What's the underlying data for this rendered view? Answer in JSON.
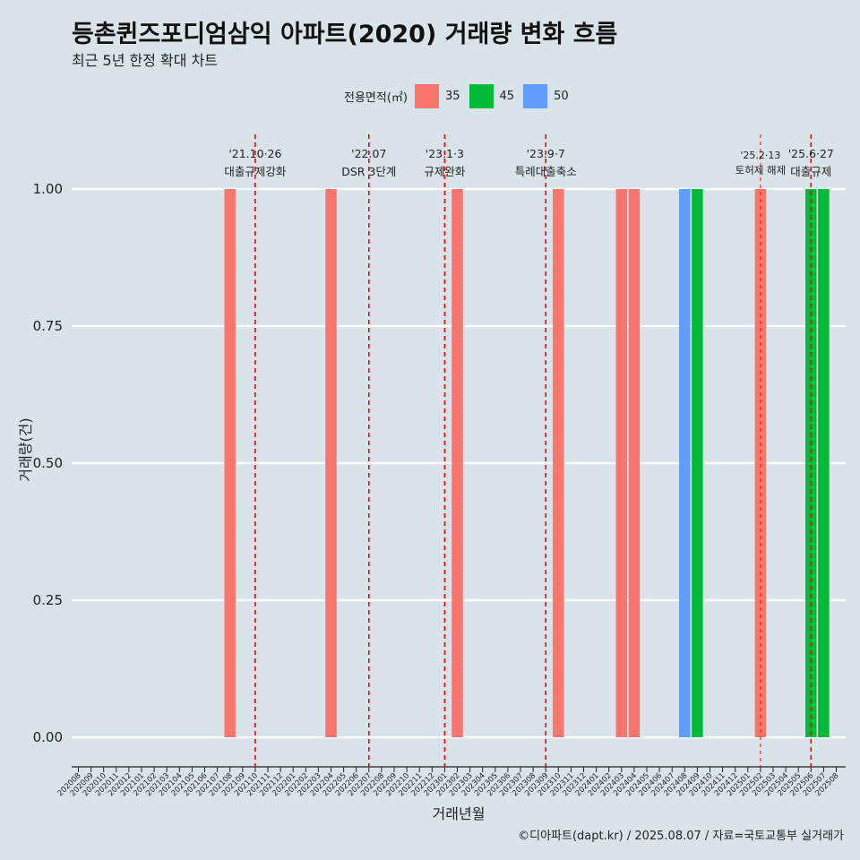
{
  "title": "등촌퀸즈포디엄삼익 아파트(2020) 거래량 변화 흐름",
  "subtitle": "최근 5년 한정 확대 차트",
  "footer": "©디아파트(dapt.kr) / 2025.08.07 / 자료=국토교통부 실거래가",
  "legend": {
    "title": "전용면적(㎡)",
    "items": [
      {
        "label": "35",
        "color": "#F8766D"
      },
      {
        "label": "45",
        "color": "#00BA38"
      },
      {
        "label": "50",
        "color": "#619CFF"
      }
    ]
  },
  "chart_data": {
    "type": "bar",
    "xlabel": "거래년월",
    "ylabel": "거래량(건)",
    "ylim": [
      0,
      1
    ],
    "yticks": [
      "0.00",
      "0.25",
      "0.50",
      "0.75",
      "1.00"
    ],
    "grid": true,
    "legend_position": "top",
    "categories": [
      "202008",
      "202009",
      "202010",
      "202011",
      "202012",
      "202101",
      "202102",
      "202103",
      "202104",
      "202105",
      "202106",
      "202107",
      "202108",
      "202109",
      "202110",
      "202111",
      "202112",
      "202201",
      "202202",
      "202203",
      "202204",
      "202205",
      "202206",
      "202207",
      "202208",
      "202209",
      "202210",
      "202211",
      "202212",
      "202301",
      "202302",
      "202303",
      "202304",
      "202305",
      "202306",
      "202307",
      "202308",
      "202309",
      "202310",
      "202311",
      "202312",
      "202401",
      "202402",
      "202403",
      "202404",
      "202405",
      "202406",
      "202407",
      "202408",
      "202409",
      "202410",
      "202411",
      "202412",
      "202501",
      "202502",
      "202503",
      "202504",
      "202505",
      "202506",
      "202507",
      "202508"
    ],
    "series": [
      {
        "name": "35",
        "color": "#F8766D",
        "points": [
          {
            "month": "202108",
            "value": 1
          },
          {
            "month": "202204",
            "value": 1
          },
          {
            "month": "202302",
            "value": 1
          },
          {
            "month": "202310",
            "value": 1
          },
          {
            "month": "202403",
            "value": 1
          },
          {
            "month": "202404",
            "value": 1
          },
          {
            "month": "202502",
            "value": 1
          }
        ]
      },
      {
        "name": "45",
        "color": "#00BA38",
        "points": [
          {
            "month": "202409",
            "value": 1
          },
          {
            "month": "202506",
            "value": 1
          },
          {
            "month": "202507",
            "value": 1
          }
        ]
      },
      {
        "name": "50",
        "color": "#619CFF",
        "points": [
          {
            "month": "202408",
            "value": 1
          }
        ]
      }
    ],
    "events": [
      {
        "month": "202110",
        "date": "'21.10·26",
        "label": "대출규제강화",
        "style": "bold"
      },
      {
        "month": "202207",
        "date": "'22.07",
        "label": "DSR 3단계",
        "style": "bold"
      },
      {
        "month": "202301",
        "date": "'23.1·3",
        "label": "규제완화",
        "style": "bold"
      },
      {
        "month": "202309",
        "date": "'23.9·7",
        "label": "특례대출축소",
        "style": "bold"
      },
      {
        "month": "202502",
        "date": "'25.2·13",
        "label": "토허제 해제",
        "style": "thin"
      },
      {
        "month": "202506",
        "date": "'25.6·27",
        "label": "대출규제",
        "style": "bold"
      }
    ]
  }
}
